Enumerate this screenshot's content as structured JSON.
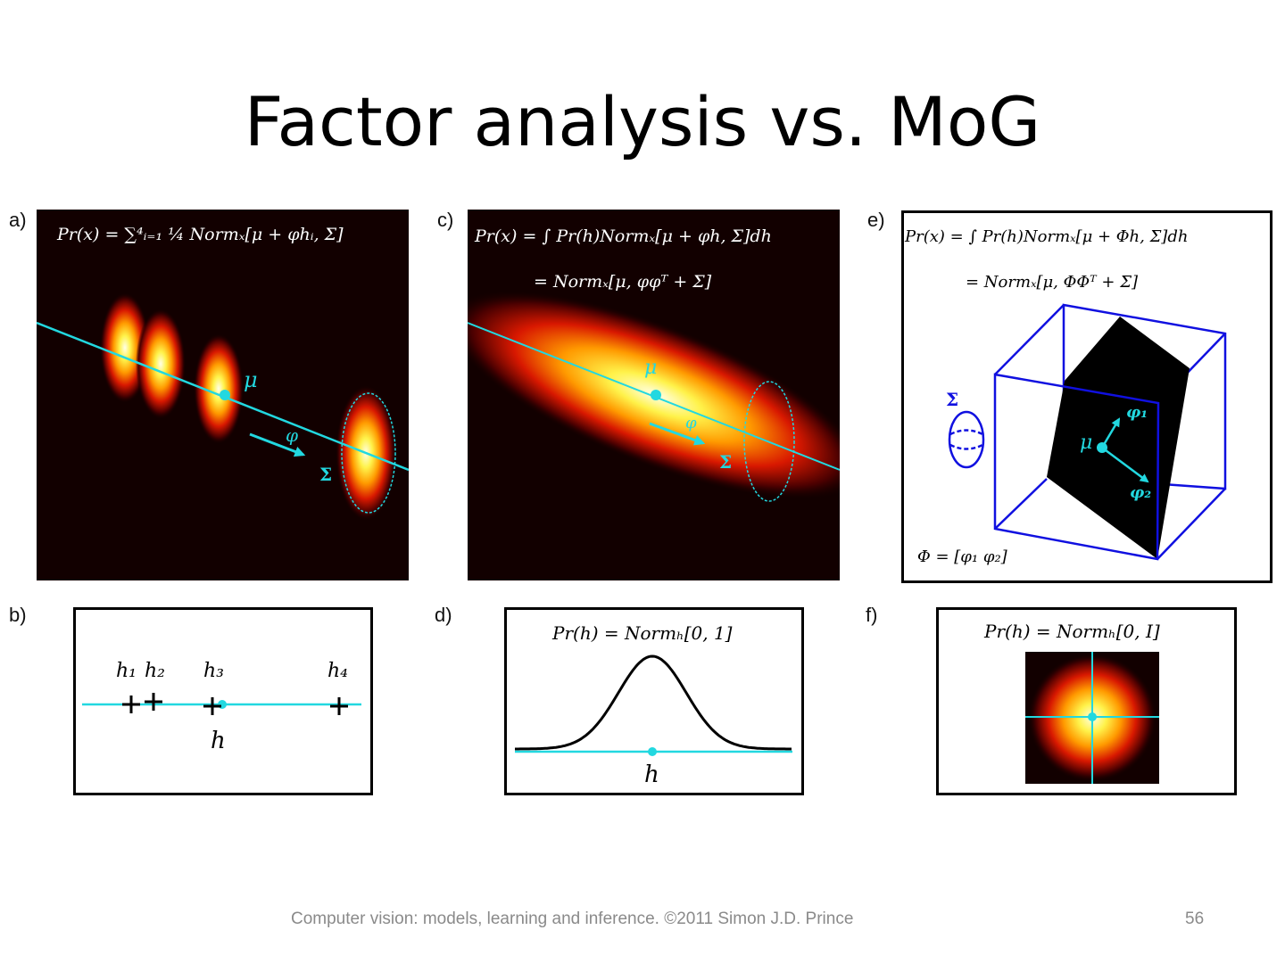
{
  "slide": {
    "title": "Factor analysis vs. MoG",
    "footer": "Computer vision: models, learning and inference.  ©2011 Simon J.D. Prince",
    "page_number": "56"
  },
  "panels": {
    "a": {
      "label": "a)",
      "formula": "Pr(x) = ∑⁴ᵢ₌₁ ¼ Normₓ[μ + φhᵢ, Σ]",
      "mu": "μ",
      "phi": "φ",
      "sigma": "Σ"
    },
    "b": {
      "label": "b)",
      "h1": "h₁",
      "h2": "h₂",
      "h3": "h₃",
      "h4": "h₄",
      "h": "h"
    },
    "c": {
      "label": "c)",
      "formula1": "Pr(x) = ∫ Pr(h)Normₓ[μ + φh, Σ]dh",
      "formula2": "= Normₓ[μ, φφᵀ + Σ]",
      "mu": "μ",
      "phi": "φ",
      "sigma": "Σ"
    },
    "d": {
      "label": "d)",
      "formula": "Pr(h) = Normₕ[0, 1]",
      "h": "h"
    },
    "e": {
      "label": "e)",
      "formula1": "Pr(x) = ∫ Pr(h)Normₓ[μ + Φh, Σ]dh",
      "formula2": "= Normₓ[μ, ΦΦᵀ + Σ]",
      "mu": "μ",
      "phi1": "φ₁",
      "phi2": "φ₂",
      "sigma": "Σ",
      "phi_def": "Φ = [φ₁  φ₂]"
    },
    "f": {
      "label": "f)",
      "formula": "Pr(h) = Normₕ[0, I]"
    }
  },
  "colors": {
    "cyan": "#22d8e0",
    "blue": "#1010e0",
    "heat_bg": "#120000"
  }
}
